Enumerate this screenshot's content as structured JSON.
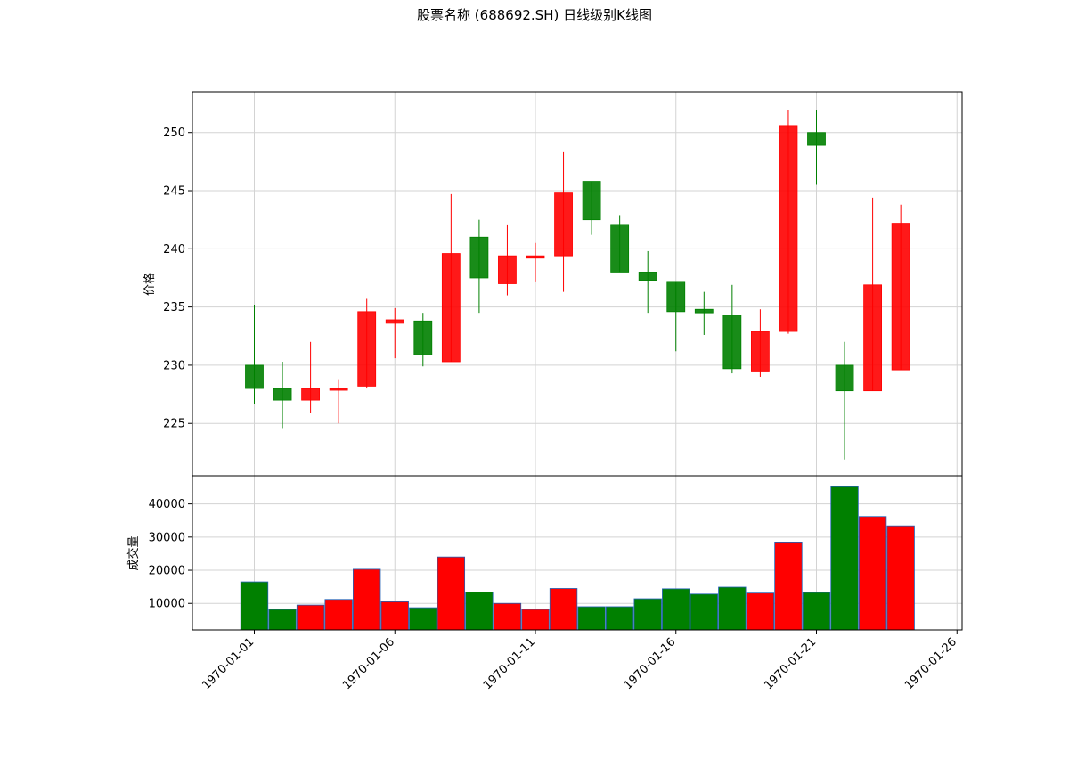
{
  "chart_data": {
    "type": "candlestick",
    "title": "股票名称 (688692.SH) 日线级别K线图",
    "up_color": "#ff0000",
    "down_color": "#008000",
    "grid": true,
    "price_panel": {
      "ylabel": "价格",
      "ylim": [
        220.5,
        253.5
      ],
      "yticks": [
        225,
        230,
        235,
        240,
        245,
        250
      ],
      "candles": [
        {
          "date": "1970-01-01",
          "open": 230.0,
          "high": 235.2,
          "low": 226.7,
          "close": 228.0
        },
        {
          "date": "1970-01-02",
          "open": 228.0,
          "high": 230.3,
          "low": 224.6,
          "close": 227.0
        },
        {
          "date": "1970-01-03",
          "open": 227.0,
          "high": 232.0,
          "low": 225.9,
          "close": 228.0
        },
        {
          "date": "1970-01-04",
          "open": 228.0,
          "high": 228.8,
          "low": 225.0,
          "close": 228.0
        },
        {
          "date": "1970-01-05",
          "open": 228.2,
          "high": 235.7,
          "low": 228.0,
          "close": 234.6
        },
        {
          "date": "1970-01-06",
          "open": 233.6,
          "high": 234.9,
          "low": 230.6,
          "close": 233.9
        },
        {
          "date": "1970-01-07",
          "open": 233.8,
          "high": 234.5,
          "low": 229.9,
          "close": 230.9
        },
        {
          "date": "1970-01-08",
          "open": 230.3,
          "high": 244.7,
          "low": 230.3,
          "close": 239.6
        },
        {
          "date": "1970-01-09",
          "open": 241.0,
          "high": 242.5,
          "low": 234.5,
          "close": 237.5
        },
        {
          "date": "1970-01-10",
          "open": 237.0,
          "high": 242.1,
          "low": 236.0,
          "close": 239.4
        },
        {
          "date": "1970-01-11",
          "open": 239.2,
          "high": 240.5,
          "low": 237.2,
          "close": 239.4
        },
        {
          "date": "1970-01-12",
          "open": 239.4,
          "high": 248.3,
          "low": 236.3,
          "close": 244.8
        },
        {
          "date": "1970-01-13",
          "open": 245.8,
          "high": 245.8,
          "low": 241.2,
          "close": 242.5
        },
        {
          "date": "1970-01-14",
          "open": 242.1,
          "high": 242.9,
          "low": 238.0,
          "close": 238.0
        },
        {
          "date": "1970-01-15",
          "open": 238.0,
          "high": 239.8,
          "low": 234.5,
          "close": 237.3
        },
        {
          "date": "1970-01-16",
          "open": 237.2,
          "high": 237.2,
          "low": 231.2,
          "close": 234.6
        },
        {
          "date": "1970-01-17",
          "open": 234.8,
          "high": 236.3,
          "low": 232.6,
          "close": 234.5
        },
        {
          "date": "1970-01-18",
          "open": 234.3,
          "high": 236.9,
          "low": 229.3,
          "close": 229.7
        },
        {
          "date": "1970-01-19",
          "open": 229.5,
          "high": 234.8,
          "low": 229.0,
          "close": 232.9
        },
        {
          "date": "1970-01-20",
          "open": 232.9,
          "high": 251.9,
          "low": 232.7,
          "close": 250.6
        },
        {
          "date": "1970-01-21",
          "open": 250.0,
          "high": 251.9,
          "low": 245.5,
          "close": 248.9
        },
        {
          "date": "1970-01-22",
          "open": 230.0,
          "high": 232.0,
          "low": 221.9,
          "close": 227.8
        },
        {
          "date": "1970-01-23",
          "open": 227.8,
          "high": 244.4,
          "low": 227.8,
          "close": 236.9
        },
        {
          "date": "1970-01-24",
          "open": 229.6,
          "high": 243.8,
          "low": 229.6,
          "close": 242.2
        }
      ]
    },
    "volume_panel": {
      "ylabel": "成交量",
      "ylim": [
        2000,
        48500
      ],
      "yticks": [
        10000,
        20000,
        30000,
        40000
      ],
      "ytick_labels": [
        "10000",
        "20000",
        "30000",
        "40000"
      ],
      "volumes": [
        16500,
        8200,
        9500,
        11200,
        20300,
        10500,
        8700,
        24000,
        13400,
        10000,
        8200,
        14500,
        9000,
        9000,
        11400,
        14400,
        12800,
        14900,
        13100,
        28500,
        13300,
        45200,
        36200,
        33400
      ]
    },
    "xticks": [
      "1970-01-01",
      "1970-01-06",
      "1970-01-11",
      "1970-01-16",
      "1970-01-21",
      "1970-01-26"
    ]
  }
}
